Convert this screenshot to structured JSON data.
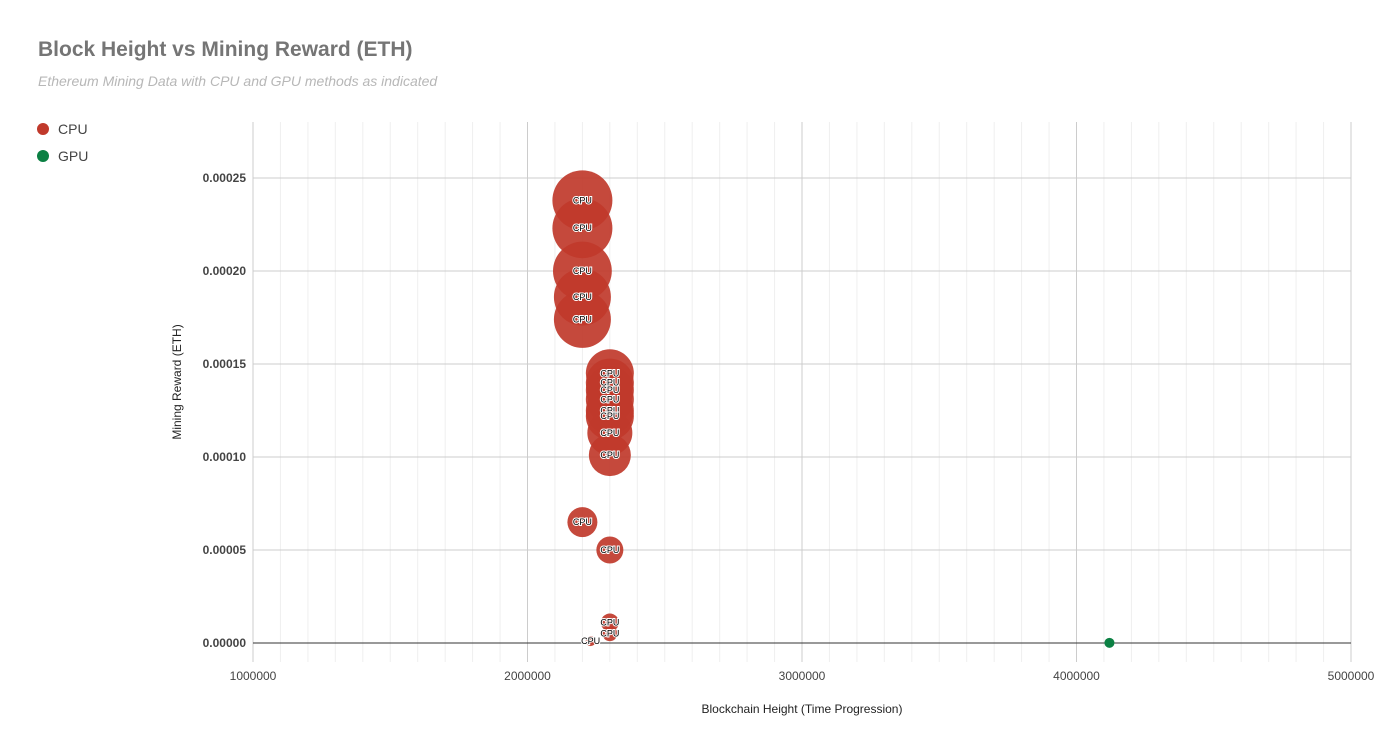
{
  "chart_data": {
    "type": "scatter",
    "title": "Block Height vs Mining Reward (ETH)",
    "subtitle": "Ethereum Mining Data with CPU and GPU methods  as indicated",
    "xlabel": "Blockchain Height (Time Progression)",
    "ylabel": "Mining Reward (ETH)",
    "xlim": [
      1000000,
      5000000
    ],
    "ylim": [
      0,
      0.00028
    ],
    "xticks": [
      "1000000",
      "2000000",
      "3000000",
      "4000000",
      "5000000"
    ],
    "yticks": [
      "0.00000",
      "0.00005",
      "0.00010",
      "0.00015",
      "0.00020",
      "0.00025"
    ],
    "grid": true,
    "legend_position": "top-left",
    "colors": {
      "CPU": "#c0392b",
      "GPU": "#0b8043"
    },
    "series": [
      {
        "name": "CPU",
        "color": "#c0392b",
        "points": [
          {
            "x": 2200000,
            "y": 0.000238,
            "label": "CPU",
            "size": 1.0
          },
          {
            "x": 2200000,
            "y": 0.000223,
            "label": "CPU",
            "size": 1.0
          },
          {
            "x": 2200000,
            "y": 0.0002,
            "label": "CPU",
            "size": 0.98
          },
          {
            "x": 2200000,
            "y": 0.000186,
            "label": "CPU",
            "size": 0.95
          },
          {
            "x": 2200000,
            "y": 0.000174,
            "label": "CPU",
            "size": 0.95
          },
          {
            "x": 2300000,
            "y": 0.000145,
            "label": "CPU",
            "size": 0.8
          },
          {
            "x": 2300000,
            "y": 0.00014,
            "label": "CPU",
            "size": 0.8
          },
          {
            "x": 2300000,
            "y": 0.000136,
            "label": "CPU",
            "size": 0.8
          },
          {
            "x": 2300000,
            "y": 0.000131,
            "label": "CPU",
            "size": 0.8
          },
          {
            "x": 2300000,
            "y": 0.000125,
            "label": "CPU",
            "size": 0.8
          },
          {
            "x": 2300000,
            "y": 0.000122,
            "label": "CPU",
            "size": 0.8
          },
          {
            "x": 2300000,
            "y": 0.000113,
            "label": "CPU",
            "size": 0.75
          },
          {
            "x": 2300000,
            "y": 0.000101,
            "label": "CPU",
            "size": 0.7
          },
          {
            "x": 2200000,
            "y": 6.5e-05,
            "label": "CPU",
            "size": 0.5
          },
          {
            "x": 2300000,
            "y": 5e-05,
            "label": "CPU",
            "size": 0.45
          },
          {
            "x": 2300000,
            "y": 1.1e-05,
            "label": "CPU",
            "size": 0.3
          },
          {
            "x": 2300000,
            "y": 5e-06,
            "label": "CPU",
            "size": 0.25
          },
          {
            "x": 2230000,
            "y": 1e-06,
            "label": "CPU",
            "size": 0.15
          }
        ]
      },
      {
        "name": "GPU",
        "color": "#0b8043",
        "points": [
          {
            "x": 4120000,
            "y": 1e-07,
            "label": "",
            "size": 0.08
          }
        ]
      }
    ]
  }
}
